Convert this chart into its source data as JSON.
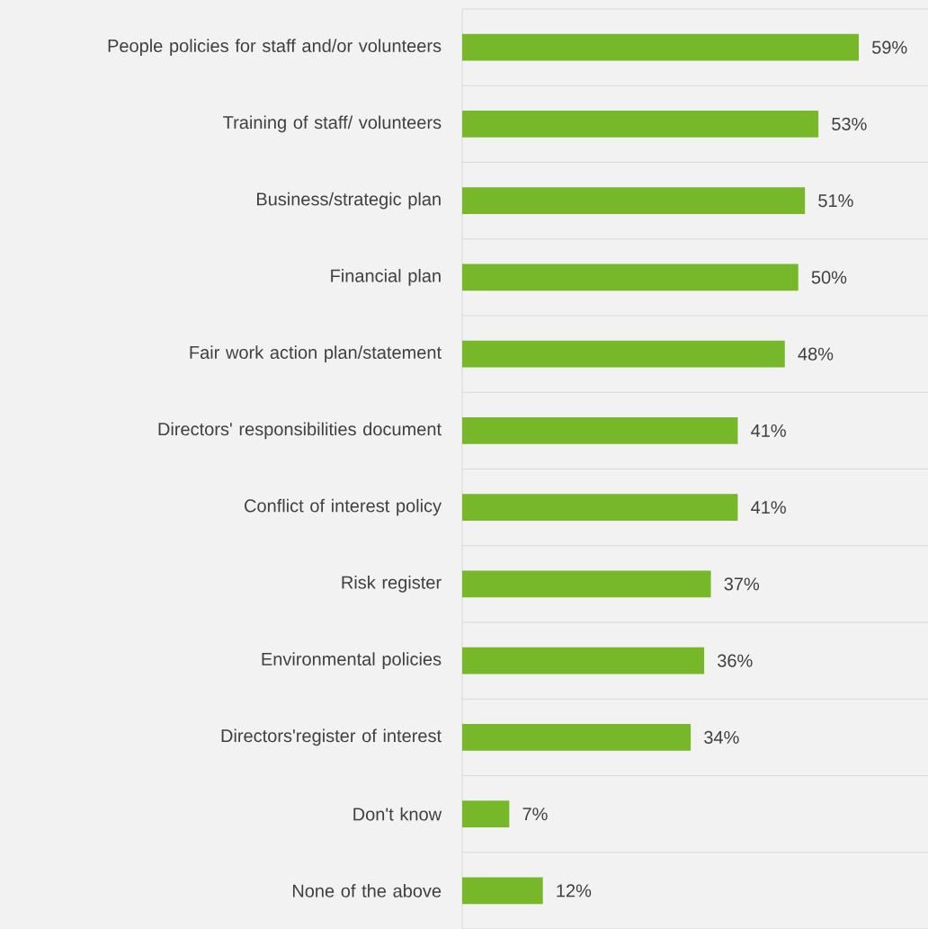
{
  "chart_data": {
    "type": "bar",
    "orientation": "horizontal",
    "color": "#76b82a",
    "grid": "y",
    "categories": [
      "People policies for staff and/or volunteers",
      "Training of staff/ volunteers",
      "Business/strategic plan",
      "Financial plan",
      "Fair work action plan/statement",
      "Directors' responsibilities document",
      "Conflict of interest policy",
      "Risk register",
      "Environmental policies",
      "Directors'register of interest",
      "Don't know",
      "None of the above"
    ],
    "values": [
      59,
      53,
      51,
      50,
      48,
      41,
      41,
      37,
      36,
      34,
      7,
      12
    ],
    "value_labels": [
      "59%",
      "53%",
      "51%",
      "50%",
      "48%",
      "41%",
      "41%",
      "37%",
      "36%",
      "34%",
      "7%",
      "12%"
    ]
  }
}
